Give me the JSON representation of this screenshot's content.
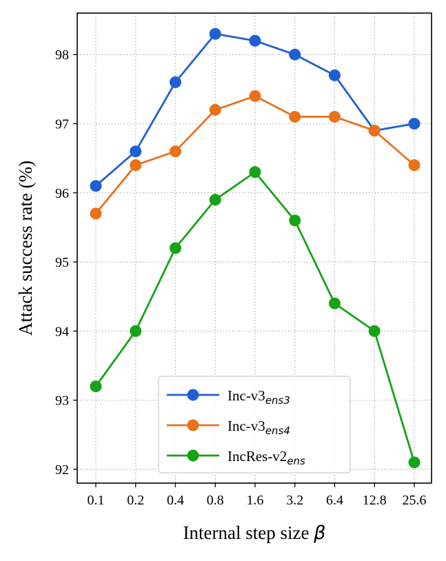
{
  "chart_data": {
    "type": "line",
    "categories": [
      "0.1",
      "0.2",
      "0.4",
      "0.8",
      "1.6",
      "3.2",
      "6.4",
      "12.8",
      "25.6"
    ],
    "xlabel": "Internal step size",
    "xlabel_symbol": "β",
    "ylabel": "Attack success rate (%)",
    "ylim": [
      91.8,
      98.6
    ],
    "yticks": [
      "92",
      "93",
      "94",
      "95",
      "96",
      "97",
      "98"
    ],
    "grid": true,
    "legend_position": "lower-center",
    "series": [
      {
        "name": "Inc-v3",
        "name_subscript": "ens3",
        "color": "#1f5fd1",
        "values": [
          96.1,
          96.6,
          97.6,
          98.3,
          98.2,
          98.0,
          97.7,
          96.9,
          97.0
        ]
      },
      {
        "name": "Inc-v3",
        "name_subscript": "ens4",
        "color": "#e8711a",
        "values": [
          95.7,
          96.4,
          96.6,
          97.2,
          97.4,
          97.1,
          97.1,
          96.9,
          96.4
        ]
      },
      {
        "name": "IncRes-v2",
        "name_subscript": "ens",
        "color": "#17a317",
        "values": [
          93.2,
          94.0,
          95.2,
          95.9,
          96.3,
          95.6,
          94.4,
          94.0,
          92.1
        ]
      }
    ]
  }
}
